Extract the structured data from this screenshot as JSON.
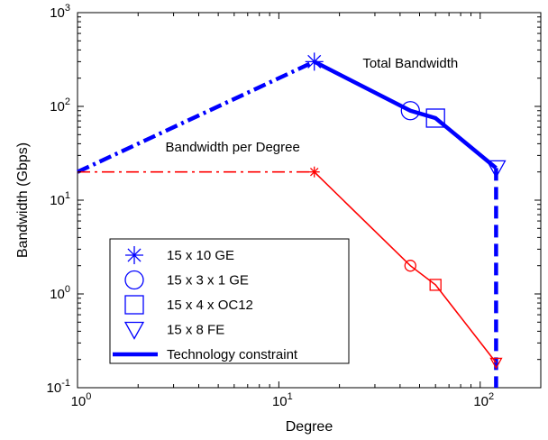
{
  "chart_data": {
    "type": "line",
    "xlabel": "Degree",
    "ylabel": "Bandwidth (Gbps)",
    "xscale": "log",
    "yscale": "log",
    "xlim": [
      1,
      200
    ],
    "ylim": [
      0.1,
      1000
    ],
    "grid": false,
    "x_ticks": [
      {
        "value": 1,
        "base": "10",
        "exp": "0"
      },
      {
        "value": 10,
        "base": "10",
        "exp": "1"
      },
      {
        "value": 100,
        "base": "10",
        "exp": "2"
      }
    ],
    "y_ticks": [
      {
        "value": 0.1,
        "base": "10",
        "exp": "-1"
      },
      {
        "value": 1,
        "base": "10",
        "exp": "0"
      },
      {
        "value": 10,
        "base": "10",
        "exp": "1"
      },
      {
        "value": 100,
        "base": "10",
        "exp": "2"
      },
      {
        "value": 1000,
        "base": "10",
        "exp": "3"
      }
    ],
    "annotations": [
      {
        "text": "Total Bandwidth",
        "x": 45,
        "y": 260
      },
      {
        "text": "Bandwidth per Degree",
        "x": 5.9,
        "y": 33
      }
    ],
    "series": [
      {
        "key": "total_constraint",
        "color": "#0000ff",
        "style": "dashdot",
        "points": [
          {
            "x": 1,
            "y": 20
          },
          {
            "x": 15,
            "y": 300
          }
        ]
      },
      {
        "key": "total_solid",
        "color": "#0000ff",
        "style": "solid",
        "points": [
          {
            "x": 15,
            "y": 300
          },
          {
            "x": 45,
            "y": 90
          },
          {
            "x": 60,
            "y": 75
          },
          {
            "x": 120,
            "y": 22
          }
        ]
      },
      {
        "key": "technology_constraint",
        "color": "#0000ff",
        "style": "dashed",
        "points": [
          {
            "x": 120,
            "y": 22
          },
          {
            "x": 120,
            "y": 0.1
          }
        ]
      },
      {
        "key": "per_degree_constraint",
        "color": "#ff0000",
        "style": "dashdot",
        "points": [
          {
            "x": 1,
            "y": 20
          },
          {
            "x": 15,
            "y": 20
          }
        ]
      },
      {
        "key": "per_degree_solid",
        "color": "#ff0000",
        "style": "solid",
        "points": [
          {
            "x": 15,
            "y": 20
          },
          {
            "x": 45,
            "y": 2
          },
          {
            "x": 60,
            "y": 1.25
          },
          {
            "x": 120,
            "y": 0.185
          }
        ]
      }
    ],
    "markers": [
      {
        "x": 15,
        "y": 300,
        "shape": "asterisk",
        "color": "#0000ff",
        "size": "large"
      },
      {
        "x": 45,
        "y": 90,
        "shape": "circle",
        "color": "#0000ff",
        "size": "large"
      },
      {
        "x": 60,
        "y": 75,
        "shape": "square",
        "color": "#0000ff",
        "size": "large"
      },
      {
        "x": 120,
        "y": 22,
        "shape": "triangle-down",
        "color": "#0000ff",
        "size": "large"
      },
      {
        "x": 15,
        "y": 20,
        "shape": "asterisk",
        "color": "#ff0000",
        "size": "small"
      },
      {
        "x": 45,
        "y": 2,
        "shape": "circle",
        "color": "#ff0000",
        "size": "small"
      },
      {
        "x": 60,
        "y": 1.25,
        "shape": "square",
        "color": "#ff0000",
        "size": "small"
      },
      {
        "x": 120,
        "y": 0.185,
        "shape": "triangle-down",
        "color": "#ff0000",
        "size": "small"
      }
    ],
    "legend": {
      "position": "bottom-left",
      "entries": [
        {
          "label": "15 x 10 GE",
          "shape": "asterisk"
        },
        {
          "label": "15 x 3 x 1 GE",
          "shape": "circle"
        },
        {
          "label": "15 x 4 x OC12",
          "shape": "square"
        },
        {
          "label": "15 x 8 FE",
          "shape": "triangle-down"
        },
        {
          "label": "Technology constraint",
          "shape": "line",
          "color": "#0000ff"
        }
      ]
    }
  }
}
